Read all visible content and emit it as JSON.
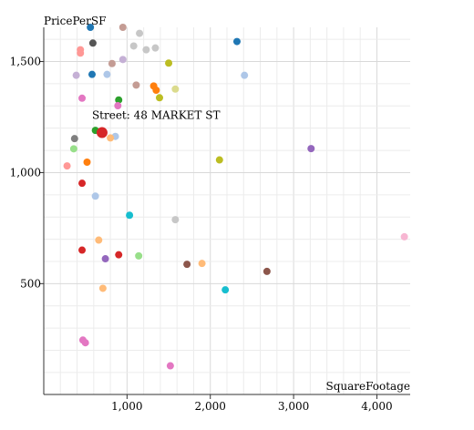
{
  "chart_data": {
    "type": "scatter",
    "x_title": "SquareFootage",
    "y_title": "PricePerSF",
    "xlim": [
      0,
      4400
    ],
    "ylim": [
      1,
      1654
    ],
    "x_ticks": [
      1000,
      2000,
      3000,
      4000
    ],
    "x_tick_labels": [
      "1,000",
      "2,000",
      "3,000",
      "4,000"
    ],
    "y_ticks": [
      500,
      1000,
      1500
    ],
    "y_tick_labels": [
      "500",
      "1,000",
      "1,500"
    ],
    "grid": true,
    "tooltip": {
      "text": "Street: 48 MARKET ST",
      "point_index": 0
    },
    "points": [
      {
        "x": 700,
        "y": 1180,
        "color": "#d62728",
        "highlight": true
      },
      {
        "x": 620,
        "y": 1190,
        "color": "#2ca02c"
      },
      {
        "x": 560,
        "y": 1665,
        "color": "#1f77b4"
      },
      {
        "x": 590,
        "y": 1583,
        "color": "#555555"
      },
      {
        "x": 950,
        "y": 1673,
        "color": "#c49c94"
      },
      {
        "x": 1150,
        "y": 1627,
        "color": "#c7c7c7"
      },
      {
        "x": 1340,
        "y": 1561,
        "color": "#c7c7c7"
      },
      {
        "x": 1080,
        "y": 1570,
        "color": "#c7c7c7"
      },
      {
        "x": 1230,
        "y": 1553,
        "color": "#c7c7c7"
      },
      {
        "x": 2320,
        "y": 1590,
        "color": "#1f77b4"
      },
      {
        "x": 440,
        "y": 1553,
        "color": "#ff9896"
      },
      {
        "x": 440,
        "y": 1538,
        "color": "#ff9896"
      },
      {
        "x": 950,
        "y": 1509,
        "color": "#c5b0d5"
      },
      {
        "x": 820,
        "y": 1491,
        "color": "#c49c94"
      },
      {
        "x": 1500,
        "y": 1493,
        "color": "#bcbd22"
      },
      {
        "x": 760,
        "y": 1442,
        "color": "#aec7e8"
      },
      {
        "x": 580,
        "y": 1442,
        "color": "#1f77b4"
      },
      {
        "x": 390,
        "y": 1438,
        "color": "#c5b0d5"
      },
      {
        "x": 2410,
        "y": 1438,
        "color": "#aec7e8"
      },
      {
        "x": 1110,
        "y": 1394,
        "color": "#c49c94"
      },
      {
        "x": 1320,
        "y": 1390,
        "color": "#ff7f0e"
      },
      {
        "x": 1350,
        "y": 1371,
        "color": "#ff7f0e"
      },
      {
        "x": 1580,
        "y": 1376,
        "color": "#dbdb8d"
      },
      {
        "x": 1390,
        "y": 1337,
        "color": "#bcbd22"
      },
      {
        "x": 900,
        "y": 1327,
        "color": "#2ca02c"
      },
      {
        "x": 460,
        "y": 1335,
        "color": "#e377c2"
      },
      {
        "x": 890,
        "y": 1301,
        "color": "#e377c2"
      },
      {
        "x": 860,
        "y": 1163,
        "color": "#aec7e8"
      },
      {
        "x": 800,
        "y": 1156,
        "color": "#ffbb78"
      },
      {
        "x": 370,
        "y": 1153,
        "color": "#7f7f7f"
      },
      {
        "x": 360,
        "y": 1107,
        "color": "#98df8a"
      },
      {
        "x": 3210,
        "y": 1108,
        "color": "#9467bd"
      },
      {
        "x": 2110,
        "y": 1057,
        "color": "#bcbd22"
      },
      {
        "x": 280,
        "y": 1030,
        "color": "#ff9896"
      },
      {
        "x": 520,
        "y": 1047,
        "color": "#ff7f0e"
      },
      {
        "x": 460,
        "y": 952,
        "color": "#d62728"
      },
      {
        "x": 620,
        "y": 894,
        "color": "#aec7e8"
      },
      {
        "x": 1030,
        "y": 808,
        "color": "#17becf"
      },
      {
        "x": 1580,
        "y": 788,
        "color": "#c7c7c7"
      },
      {
        "x": 4330,
        "y": 711,
        "color": "#f7b6d2"
      },
      {
        "x": 660,
        "y": 696,
        "color": "#ffbb78"
      },
      {
        "x": 460,
        "y": 651,
        "color": "#d62728"
      },
      {
        "x": 900,
        "y": 630,
        "color": "#d62728"
      },
      {
        "x": 1140,
        "y": 625,
        "color": "#98df8a"
      },
      {
        "x": 740,
        "y": 612,
        "color": "#9467bd"
      },
      {
        "x": 1900,
        "y": 591,
        "color": "#ffbb78"
      },
      {
        "x": 1720,
        "y": 587,
        "color": "#8c564b"
      },
      {
        "x": 2680,
        "y": 555,
        "color": "#8c564b"
      },
      {
        "x": 710,
        "y": 479,
        "color": "#ffbb78"
      },
      {
        "x": 2180,
        "y": 472,
        "color": "#17becf"
      },
      {
        "x": 470,
        "y": 246,
        "color": "#e377c2"
      },
      {
        "x": 500,
        "y": 234,
        "color": "#e377c2"
      },
      {
        "x": 1520,
        "y": 130,
        "color": "#e377c2"
      }
    ]
  }
}
